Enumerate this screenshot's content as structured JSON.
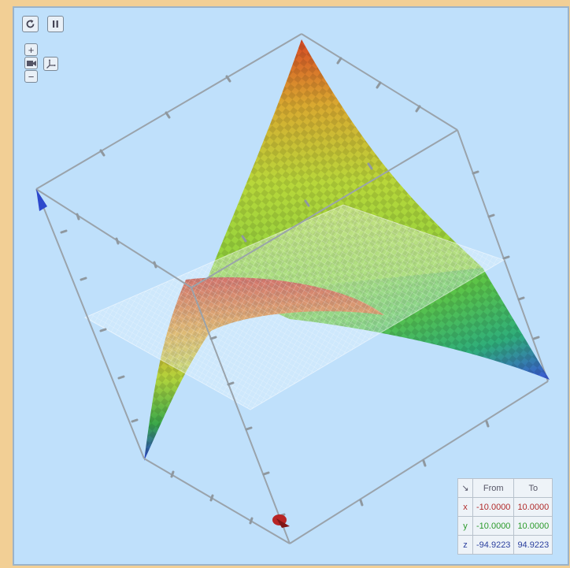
{
  "controls": {
    "reset_icon": "rotate-cw-icon",
    "pause_icon": "pause-icon",
    "zoom_in": "+",
    "zoom_out": "−",
    "camera_icon": "camera-icon",
    "axes_icon": "axes-icon"
  },
  "range_table": {
    "corner_icon": "↘",
    "headers": [
      "From",
      "To"
    ],
    "rows": [
      {
        "axis": "x",
        "from": "-10.0000",
        "to": "10.0000"
      },
      {
        "axis": "y",
        "from": "-10.0000",
        "to": "10.0000"
      },
      {
        "axis": "z",
        "from": "-94.9223",
        "to": "94.9223"
      }
    ]
  },
  "colors": {
    "background": "#bfe0fb",
    "frame": "#9aa3ab",
    "x_color": "#b02a2a",
    "y_color": "#2a9a2a",
    "z_color": "#2a3f9e"
  }
}
